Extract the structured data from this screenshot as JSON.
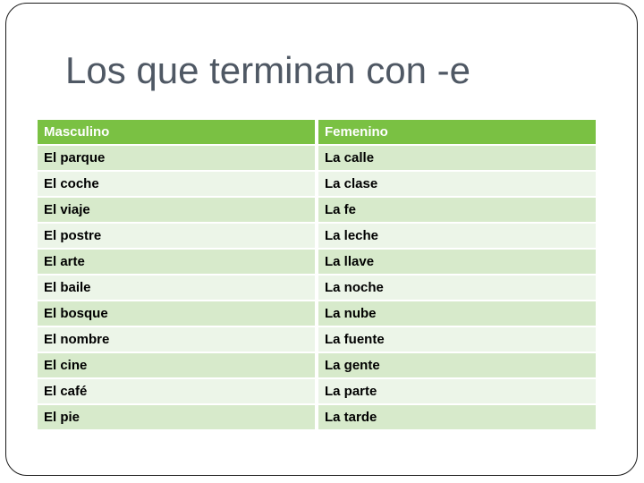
{
  "slide": {
    "title": "Los que terminan con -e",
    "table": {
      "headers": [
        "Masculino",
        "Femenino"
      ],
      "rows": [
        [
          "El parque",
          "La calle"
        ],
        [
          "El coche",
          "La clase"
        ],
        [
          "El viaje",
          "La fe"
        ],
        [
          "El postre",
          "La leche"
        ],
        [
          "El arte",
          "La llave"
        ],
        [
          "El baile",
          "La noche"
        ],
        [
          "El bosque",
          "La nube"
        ],
        [
          "El nombre",
          "La fuente"
        ],
        [
          "El cine",
          "La gente"
        ],
        [
          "El café",
          "La parte"
        ],
        [
          "El pie",
          "La tarde"
        ]
      ]
    },
    "colors": {
      "slide_border": "#1a1a1a",
      "title": "#4f5864",
      "table_header_bg": "#7ac143",
      "table_header_text": "#ffffff",
      "row_odd_bg": "#d7eacb",
      "row_even_bg": "#ecf5e8",
      "cell_text": "#000000",
      "background": "#ffffff"
    }
  }
}
